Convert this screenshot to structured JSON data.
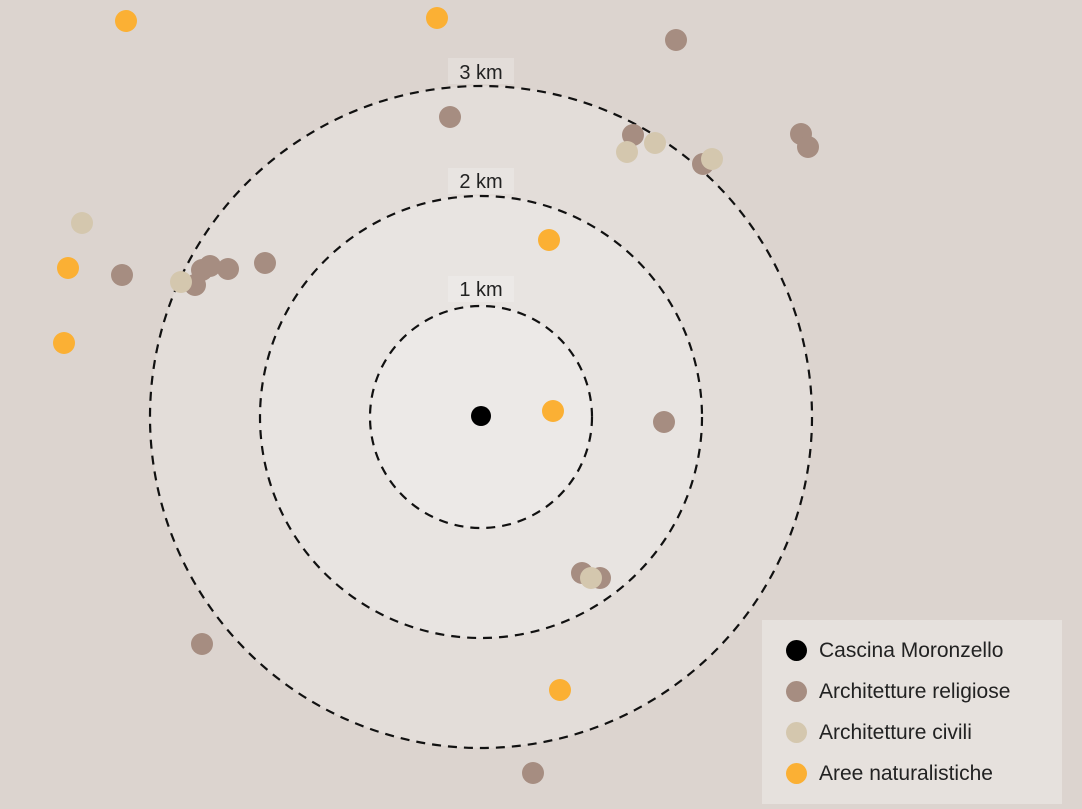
{
  "rings": [
    {
      "label": "1 km",
      "radius_km": 1
    },
    {
      "label": "2 km",
      "radius_km": 2
    },
    {
      "label": "3 km",
      "radius_km": 3
    }
  ],
  "categories": {
    "center": {
      "label": "Cascina Moronzello",
      "color": "#000000"
    },
    "religious": {
      "label": "Architetture religiose",
      "color": "#a68d81"
    },
    "civil": {
      "label": "Architetture civili",
      "color": "#d4c7ae"
    },
    "natural": {
      "label": "Aree naturalistiche",
      "color": "#fbb034"
    }
  },
  "legend": {
    "items": [
      {
        "key": "center",
        "label": "Cascina Moronzello",
        "color": "#000000"
      },
      {
        "key": "religious",
        "label": "Architetture religiose",
        "color": "#a68d81"
      },
      {
        "key": "civil",
        "label": "Architetture civili",
        "color": "#d4c7ae"
      },
      {
        "key": "natural",
        "label": "Aree naturalistiche",
        "color": "#fbb034"
      }
    ]
  },
  "background": {
    "outer": "#dcd4cf",
    "ring3": "#e3ddd9",
    "ring2": "#e8e4e1",
    "ring1": "#ece9e7"
  }
}
